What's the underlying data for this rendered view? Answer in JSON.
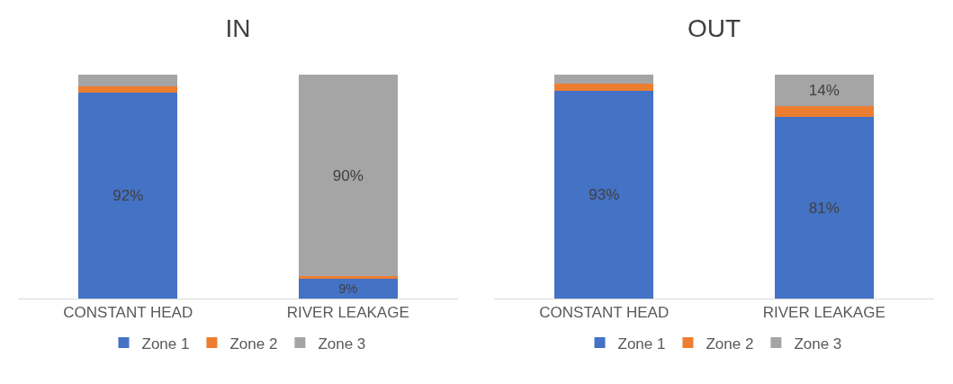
{
  "chart_data": [
    {
      "type": "bar",
      "title": "IN",
      "stacked": true,
      "legend": "bottom",
      "categories": [
        "CONSTANT HEAD",
        "RIVER LEAKAGE"
      ],
      "series": [
        {
          "name": "Zone 1",
          "color": "#4472c4",
          "values": [
            92,
            9
          ],
          "value_labels": [
            "92%",
            "9%"
          ]
        },
        {
          "name": "Zone 2",
          "color": "#ed7d31",
          "values": [
            3,
            1
          ],
          "value_labels": [
            null,
            null
          ]
        },
        {
          "name": "Zone 3",
          "color": "#a5a5a5",
          "values": [
            5,
            90
          ],
          "value_labels": [
            null,
            "90%"
          ]
        }
      ]
    },
    {
      "type": "bar",
      "title": "OUT",
      "stacked": true,
      "legend": "bottom",
      "categories": [
        "CONSTANT HEAD",
        "RIVER LEAKAGE"
      ],
      "series": [
        {
          "name": "Zone 1",
          "color": "#4472c4",
          "values": [
            93,
            81
          ],
          "value_labels": [
            "93%",
            "81%"
          ]
        },
        {
          "name": "Zone 2",
          "color": "#ed7d31",
          "values": [
            3,
            5
          ],
          "value_labels": [
            null,
            null
          ]
        },
        {
          "name": "Zone 3",
          "color": "#a5a5a5",
          "values": [
            4,
            14
          ],
          "value_labels": [
            null,
            "14%"
          ]
        }
      ]
    }
  ]
}
